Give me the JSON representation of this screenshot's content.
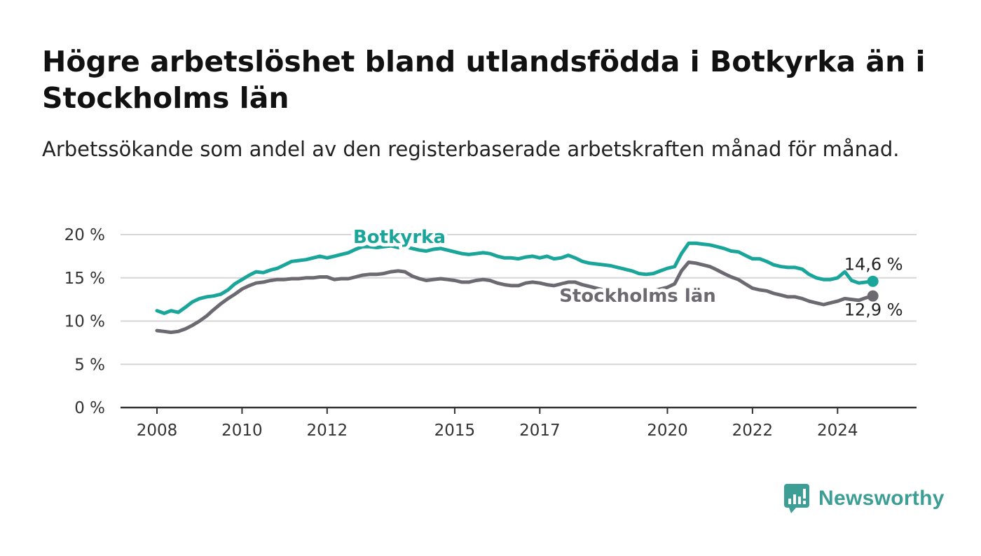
{
  "title": "Högre arbetslöshet bland utlandsfödda i Botkyrka än i Stockholms län",
  "subtitle": "Arbetssökande som andel av den registerbaserade arbetskraften månad för månad.",
  "brand": {
    "name": "Newsworthy",
    "color": "#3d9e95"
  },
  "chart_data": {
    "type": "line",
    "title": "Högre arbetslöshet bland utlandsfödda i Botkyrka än i Stockholms län",
    "subtitle": "Arbetssökande som andel av den registerbaserade arbetskraften månad för månad.",
    "xlabel": "",
    "ylabel": "",
    "xlim": [
      2008.0,
      2025.0
    ],
    "ylim": [
      0,
      20
    ],
    "x_ticks": [
      {
        "value": 2008,
        "label": "2008"
      },
      {
        "value": 2010,
        "label": "2010"
      },
      {
        "value": 2012,
        "label": "2012"
      },
      {
        "value": 2015,
        "label": "2015"
      },
      {
        "value": 2017,
        "label": "2017"
      },
      {
        "value": 2020,
        "label": "2020"
      },
      {
        "value": 2022,
        "label": "2022"
      },
      {
        "value": 2024,
        "label": "2024"
      }
    ],
    "y_ticks": [
      {
        "value": 0,
        "label": "0 %"
      },
      {
        "value": 5,
        "label": "5 %"
      },
      {
        "value": 10,
        "label": "10 %"
      },
      {
        "value": 15,
        "label": "15 %"
      },
      {
        "value": 20,
        "label": "20 %"
      }
    ],
    "grid": true,
    "legend": "direct labels on lines",
    "series": [
      {
        "name": "Botkyrka",
        "color": "#1aa59a",
        "end_label": "14,6 %",
        "points": [
          [
            2008.0,
            11.2
          ],
          [
            2008.17,
            10.9
          ],
          [
            2008.33,
            11.2
          ],
          [
            2008.5,
            11.0
          ],
          [
            2008.67,
            11.6
          ],
          [
            2008.83,
            12.2
          ],
          [
            2009.0,
            12.6
          ],
          [
            2009.17,
            12.8
          ],
          [
            2009.33,
            12.9
          ],
          [
            2009.5,
            13.1
          ],
          [
            2009.67,
            13.6
          ],
          [
            2009.83,
            14.3
          ],
          [
            2010.0,
            14.8
          ],
          [
            2010.17,
            15.3
          ],
          [
            2010.33,
            15.7
          ],
          [
            2010.5,
            15.6
          ],
          [
            2010.67,
            15.9
          ],
          [
            2010.83,
            16.1
          ],
          [
            2011.0,
            16.5
          ],
          [
            2011.17,
            16.9
          ],
          [
            2011.33,
            17.0
          ],
          [
            2011.5,
            17.1
          ],
          [
            2011.67,
            17.3
          ],
          [
            2011.83,
            17.5
          ],
          [
            2012.0,
            17.3
          ],
          [
            2012.17,
            17.5
          ],
          [
            2012.33,
            17.7
          ],
          [
            2012.5,
            17.9
          ],
          [
            2012.67,
            18.3
          ],
          [
            2012.83,
            18.6
          ],
          [
            2013.0,
            18.6
          ],
          [
            2013.17,
            18.5
          ],
          [
            2013.33,
            18.6
          ],
          [
            2013.5,
            18.7
          ],
          [
            2013.67,
            18.5
          ],
          [
            2013.83,
            18.6
          ],
          [
            2014.0,
            18.4
          ],
          [
            2014.17,
            18.2
          ],
          [
            2014.33,
            18.1
          ],
          [
            2014.5,
            18.3
          ],
          [
            2014.67,
            18.4
          ],
          [
            2014.83,
            18.2
          ],
          [
            2015.0,
            18.0
          ],
          [
            2015.17,
            17.8
          ],
          [
            2015.33,
            17.7
          ],
          [
            2015.5,
            17.8
          ],
          [
            2015.67,
            17.9
          ],
          [
            2015.83,
            17.8
          ],
          [
            2016.0,
            17.5
          ],
          [
            2016.17,
            17.3
          ],
          [
            2016.33,
            17.3
          ],
          [
            2016.5,
            17.2
          ],
          [
            2016.67,
            17.4
          ],
          [
            2016.83,
            17.5
          ],
          [
            2017.0,
            17.3
          ],
          [
            2017.17,
            17.5
          ],
          [
            2017.33,
            17.2
          ],
          [
            2017.5,
            17.3
          ],
          [
            2017.67,
            17.6
          ],
          [
            2017.83,
            17.3
          ],
          [
            2018.0,
            16.9
          ],
          [
            2018.17,
            16.7
          ],
          [
            2018.33,
            16.6
          ],
          [
            2018.5,
            16.5
          ],
          [
            2018.67,
            16.4
          ],
          [
            2018.83,
            16.2
          ],
          [
            2019.0,
            16.0
          ],
          [
            2019.17,
            15.8
          ],
          [
            2019.33,
            15.5
          ],
          [
            2019.5,
            15.4
          ],
          [
            2019.67,
            15.5
          ],
          [
            2019.83,
            15.8
          ],
          [
            2020.0,
            16.1
          ],
          [
            2020.17,
            16.3
          ],
          [
            2020.33,
            17.8
          ],
          [
            2020.5,
            19.0
          ],
          [
            2020.67,
            19.0
          ],
          [
            2020.83,
            18.9
          ],
          [
            2021.0,
            18.8
          ],
          [
            2021.17,
            18.6
          ],
          [
            2021.33,
            18.4
          ],
          [
            2021.5,
            18.1
          ],
          [
            2021.67,
            18.0
          ],
          [
            2021.83,
            17.6
          ],
          [
            2022.0,
            17.2
          ],
          [
            2022.17,
            17.2
          ],
          [
            2022.33,
            16.9
          ],
          [
            2022.5,
            16.5
          ],
          [
            2022.67,
            16.3
          ],
          [
            2022.83,
            16.2
          ],
          [
            2023.0,
            16.2
          ],
          [
            2023.17,
            16.0
          ],
          [
            2023.33,
            15.4
          ],
          [
            2023.5,
            15.0
          ],
          [
            2023.67,
            14.8
          ],
          [
            2023.83,
            14.8
          ],
          [
            2024.0,
            15.0
          ],
          [
            2024.17,
            15.7
          ],
          [
            2024.33,
            14.7
          ],
          [
            2024.5,
            14.4
          ],
          [
            2024.67,
            14.5
          ],
          [
            2024.83,
            14.6
          ]
        ]
      },
      {
        "name": "Stockholms län",
        "color": "#6c6a70",
        "end_label": "12,9 %",
        "points": [
          [
            2008.0,
            8.9
          ],
          [
            2008.17,
            8.8
          ],
          [
            2008.33,
            8.7
          ],
          [
            2008.5,
            8.8
          ],
          [
            2008.67,
            9.1
          ],
          [
            2008.83,
            9.5
          ],
          [
            2009.0,
            10.0
          ],
          [
            2009.17,
            10.6
          ],
          [
            2009.33,
            11.3
          ],
          [
            2009.5,
            12.0
          ],
          [
            2009.67,
            12.6
          ],
          [
            2009.83,
            13.1
          ],
          [
            2010.0,
            13.7
          ],
          [
            2010.17,
            14.1
          ],
          [
            2010.33,
            14.4
          ],
          [
            2010.5,
            14.5
          ],
          [
            2010.67,
            14.7
          ],
          [
            2010.83,
            14.8
          ],
          [
            2011.0,
            14.8
          ],
          [
            2011.17,
            14.9
          ],
          [
            2011.33,
            14.9
          ],
          [
            2011.5,
            15.0
          ],
          [
            2011.67,
            15.0
          ],
          [
            2011.83,
            15.1
          ],
          [
            2012.0,
            15.1
          ],
          [
            2012.17,
            14.8
          ],
          [
            2012.33,
            14.9
          ],
          [
            2012.5,
            14.9
          ],
          [
            2012.67,
            15.1
          ],
          [
            2012.83,
            15.3
          ],
          [
            2013.0,
            15.4
          ],
          [
            2013.17,
            15.4
          ],
          [
            2013.33,
            15.5
          ],
          [
            2013.5,
            15.7
          ],
          [
            2013.67,
            15.8
          ],
          [
            2013.83,
            15.7
          ],
          [
            2014.0,
            15.2
          ],
          [
            2014.17,
            14.9
          ],
          [
            2014.33,
            14.7
          ],
          [
            2014.5,
            14.8
          ],
          [
            2014.67,
            14.9
          ],
          [
            2014.83,
            14.8
          ],
          [
            2015.0,
            14.7
          ],
          [
            2015.17,
            14.5
          ],
          [
            2015.33,
            14.5
          ],
          [
            2015.5,
            14.7
          ],
          [
            2015.67,
            14.8
          ],
          [
            2015.83,
            14.7
          ],
          [
            2016.0,
            14.4
          ],
          [
            2016.17,
            14.2
          ],
          [
            2016.33,
            14.1
          ],
          [
            2016.5,
            14.1
          ],
          [
            2016.67,
            14.4
          ],
          [
            2016.83,
            14.5
          ],
          [
            2017.0,
            14.4
          ],
          [
            2017.17,
            14.2
          ],
          [
            2017.33,
            14.1
          ],
          [
            2017.5,
            14.3
          ],
          [
            2017.67,
            14.5
          ],
          [
            2017.83,
            14.5
          ],
          [
            2018.0,
            14.2
          ],
          [
            2018.17,
            14.0
          ],
          [
            2018.33,
            13.8
          ],
          [
            2018.5,
            13.6
          ],
          [
            2018.67,
            13.5
          ],
          [
            2018.83,
            13.3
          ],
          [
            2019.0,
            13.2
          ],
          [
            2019.17,
            13.2
          ],
          [
            2019.33,
            13.3
          ],
          [
            2019.5,
            13.4
          ],
          [
            2019.67,
            13.5
          ],
          [
            2019.83,
            13.7
          ],
          [
            2020.0,
            13.9
          ],
          [
            2020.17,
            14.3
          ],
          [
            2020.33,
            15.8
          ],
          [
            2020.5,
            16.8
          ],
          [
            2020.67,
            16.7
          ],
          [
            2020.83,
            16.5
          ],
          [
            2021.0,
            16.3
          ],
          [
            2021.17,
            15.9
          ],
          [
            2021.33,
            15.5
          ],
          [
            2021.5,
            15.1
          ],
          [
            2021.67,
            14.8
          ],
          [
            2021.83,
            14.3
          ],
          [
            2022.0,
            13.8
          ],
          [
            2022.17,
            13.6
          ],
          [
            2022.33,
            13.5
          ],
          [
            2022.5,
            13.2
          ],
          [
            2022.67,
            13.0
          ],
          [
            2022.83,
            12.8
          ],
          [
            2023.0,
            12.8
          ],
          [
            2023.17,
            12.6
          ],
          [
            2023.33,
            12.3
          ],
          [
            2023.5,
            12.1
          ],
          [
            2023.67,
            11.9
          ],
          [
            2023.83,
            12.1
          ],
          [
            2024.0,
            12.3
          ],
          [
            2024.17,
            12.6
          ],
          [
            2024.33,
            12.5
          ],
          [
            2024.5,
            12.4
          ],
          [
            2024.67,
            12.7
          ],
          [
            2024.83,
            12.9
          ]
        ]
      }
    ]
  }
}
